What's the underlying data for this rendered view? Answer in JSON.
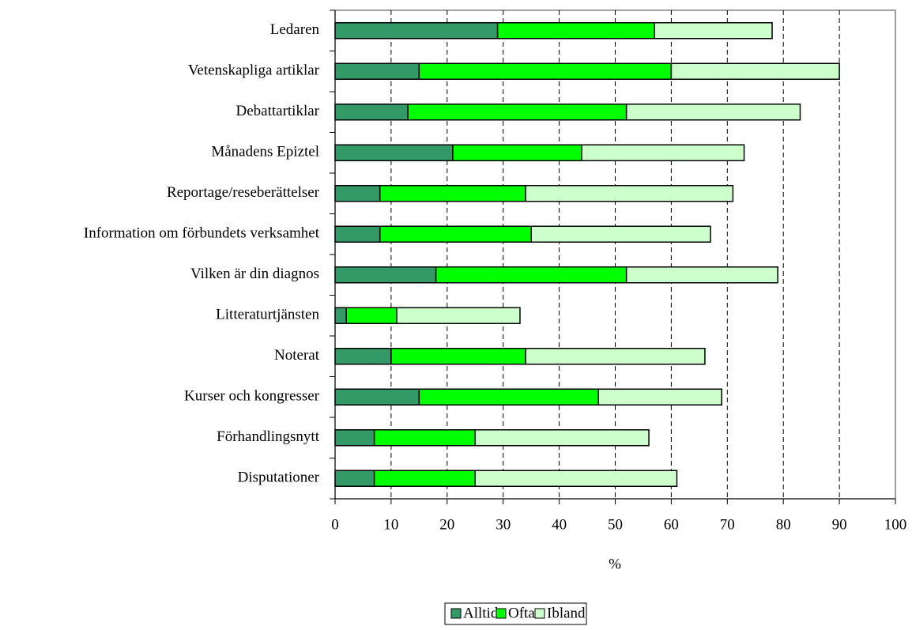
{
  "chart_data": {
    "type": "stacked-barh",
    "categories": [
      "Ledaren",
      "Vetenskapliga artiklar",
      "Debattartiklar",
      "Månadens Epiztel",
      "Reportage/reseberättelser",
      "Information om förbundets verksamhet",
      "Vilken är din diagnos",
      "Litteraturtjänsten",
      "Noterat",
      "Kurser och kongresser",
      "Förhandlingsnytt",
      "Disputationer"
    ],
    "series": [
      {
        "name": "Alltid",
        "color": "#339966",
        "values": [
          29,
          15,
          13,
          21,
          8,
          8,
          18,
          2,
          10,
          15,
          7,
          7
        ]
      },
      {
        "name": "Ofta",
        "color": "#00ff00",
        "values": [
          28,
          45,
          39,
          23,
          26,
          27,
          34,
          9,
          24,
          32,
          18,
          18
        ]
      },
      {
        "name": "Ibland",
        "color": "#ccffcc",
        "values": [
          21,
          30,
          31,
          29,
          37,
          32,
          27,
          22,
          32,
          22,
          31,
          36
        ]
      }
    ],
    "xlabel": "%",
    "xlim": [
      0,
      100
    ],
    "xticks": [
      0,
      10,
      20,
      30,
      40,
      50,
      60,
      70,
      80,
      90,
      100
    ],
    "grid": true
  }
}
